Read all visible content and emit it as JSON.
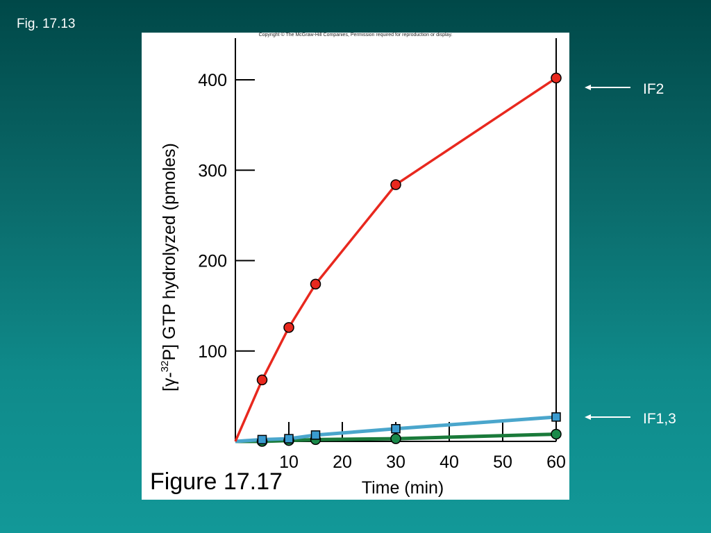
{
  "slide": {
    "fig_label": "Fig. 17.13",
    "copyright": "Copyright © The McGraw-Hill Companies, Permission required for reproduction or display.",
    "figure_caption": "Figure 17.17",
    "background_top": "#004848",
    "background_bottom": "#129898",
    "annotations": [
      {
        "label": "IF2"
      },
      {
        "label": "IF1,3"
      }
    ]
  },
  "chart_data": {
    "type": "line",
    "title": "",
    "xlabel": "Time (min)",
    "ylabel_prefix": "[γ-",
    "ylabel_sup": "32",
    "ylabel_suffix": "P] GTP hydrolyzed (pmoles)",
    "xlim": [
      0,
      60
    ],
    "ylim": [
      0,
      400
    ],
    "x_ticks": [
      10,
      20,
      30,
      40,
      50,
      60
    ],
    "y_ticks": [
      100,
      200,
      300,
      400
    ],
    "grid": false,
    "series": [
      {
        "name": "IF2",
        "color": "#e8281e",
        "line_color": "#e8281e",
        "marker": "circle",
        "x": [
          0,
          5,
          10,
          15,
          30,
          60
        ],
        "y": [
          0,
          68,
          126,
          174,
          284,
          402
        ]
      },
      {
        "name": "",
        "color": "#3a9bd0",
        "line_color": "#4aa6cc",
        "marker": "square",
        "x": [
          0,
          5,
          10,
          15,
          30,
          60
        ],
        "y": [
          0,
          2,
          3,
          7,
          14,
          27
        ]
      },
      {
        "name": "",
        "color": "#1a8a4a",
        "line_color": "#1a7a3a",
        "marker": "circle",
        "x": [
          0,
          5,
          10,
          15,
          30,
          60
        ],
        "y": [
          0,
          0,
          1,
          2,
          3,
          8
        ]
      }
    ]
  }
}
